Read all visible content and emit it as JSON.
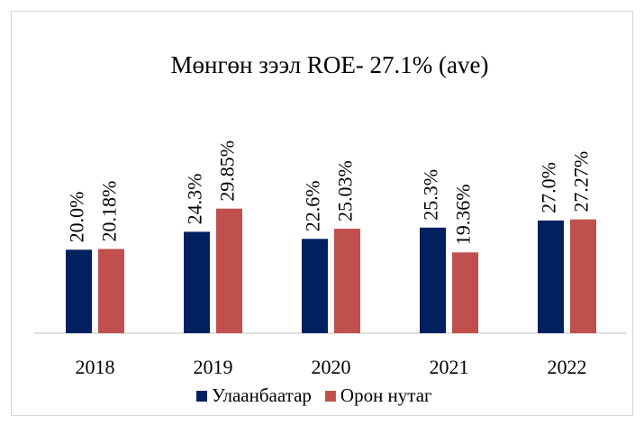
{
  "chart_data": {
    "type": "bar",
    "title": "Мөнгөн зээл ROE- 27.1% (ave)",
    "categories": [
      "2018",
      "2019",
      "2020",
      "2021",
      "2022"
    ],
    "series": [
      {
        "name": "Улаанбаатар",
        "color": "#002060",
        "values": [
          20.0,
          24.3,
          22.6,
          25.3,
          27.0
        ],
        "value_labels": [
          "20.0%",
          "24.3%",
          "22.6%",
          "25.3%",
          "27.0%"
        ]
      },
      {
        "name": "Орон нутаг",
        "color": "#c0504d",
        "values": [
          20.18,
          29.85,
          25.03,
          19.36,
          27.27
        ],
        "value_labels": [
          "20.18%",
          "29.85%",
          "25.03%",
          "19.36%",
          "27.27%"
        ]
      }
    ],
    "ylim": [
      0,
      60
    ],
    "legend": "bottom"
  }
}
